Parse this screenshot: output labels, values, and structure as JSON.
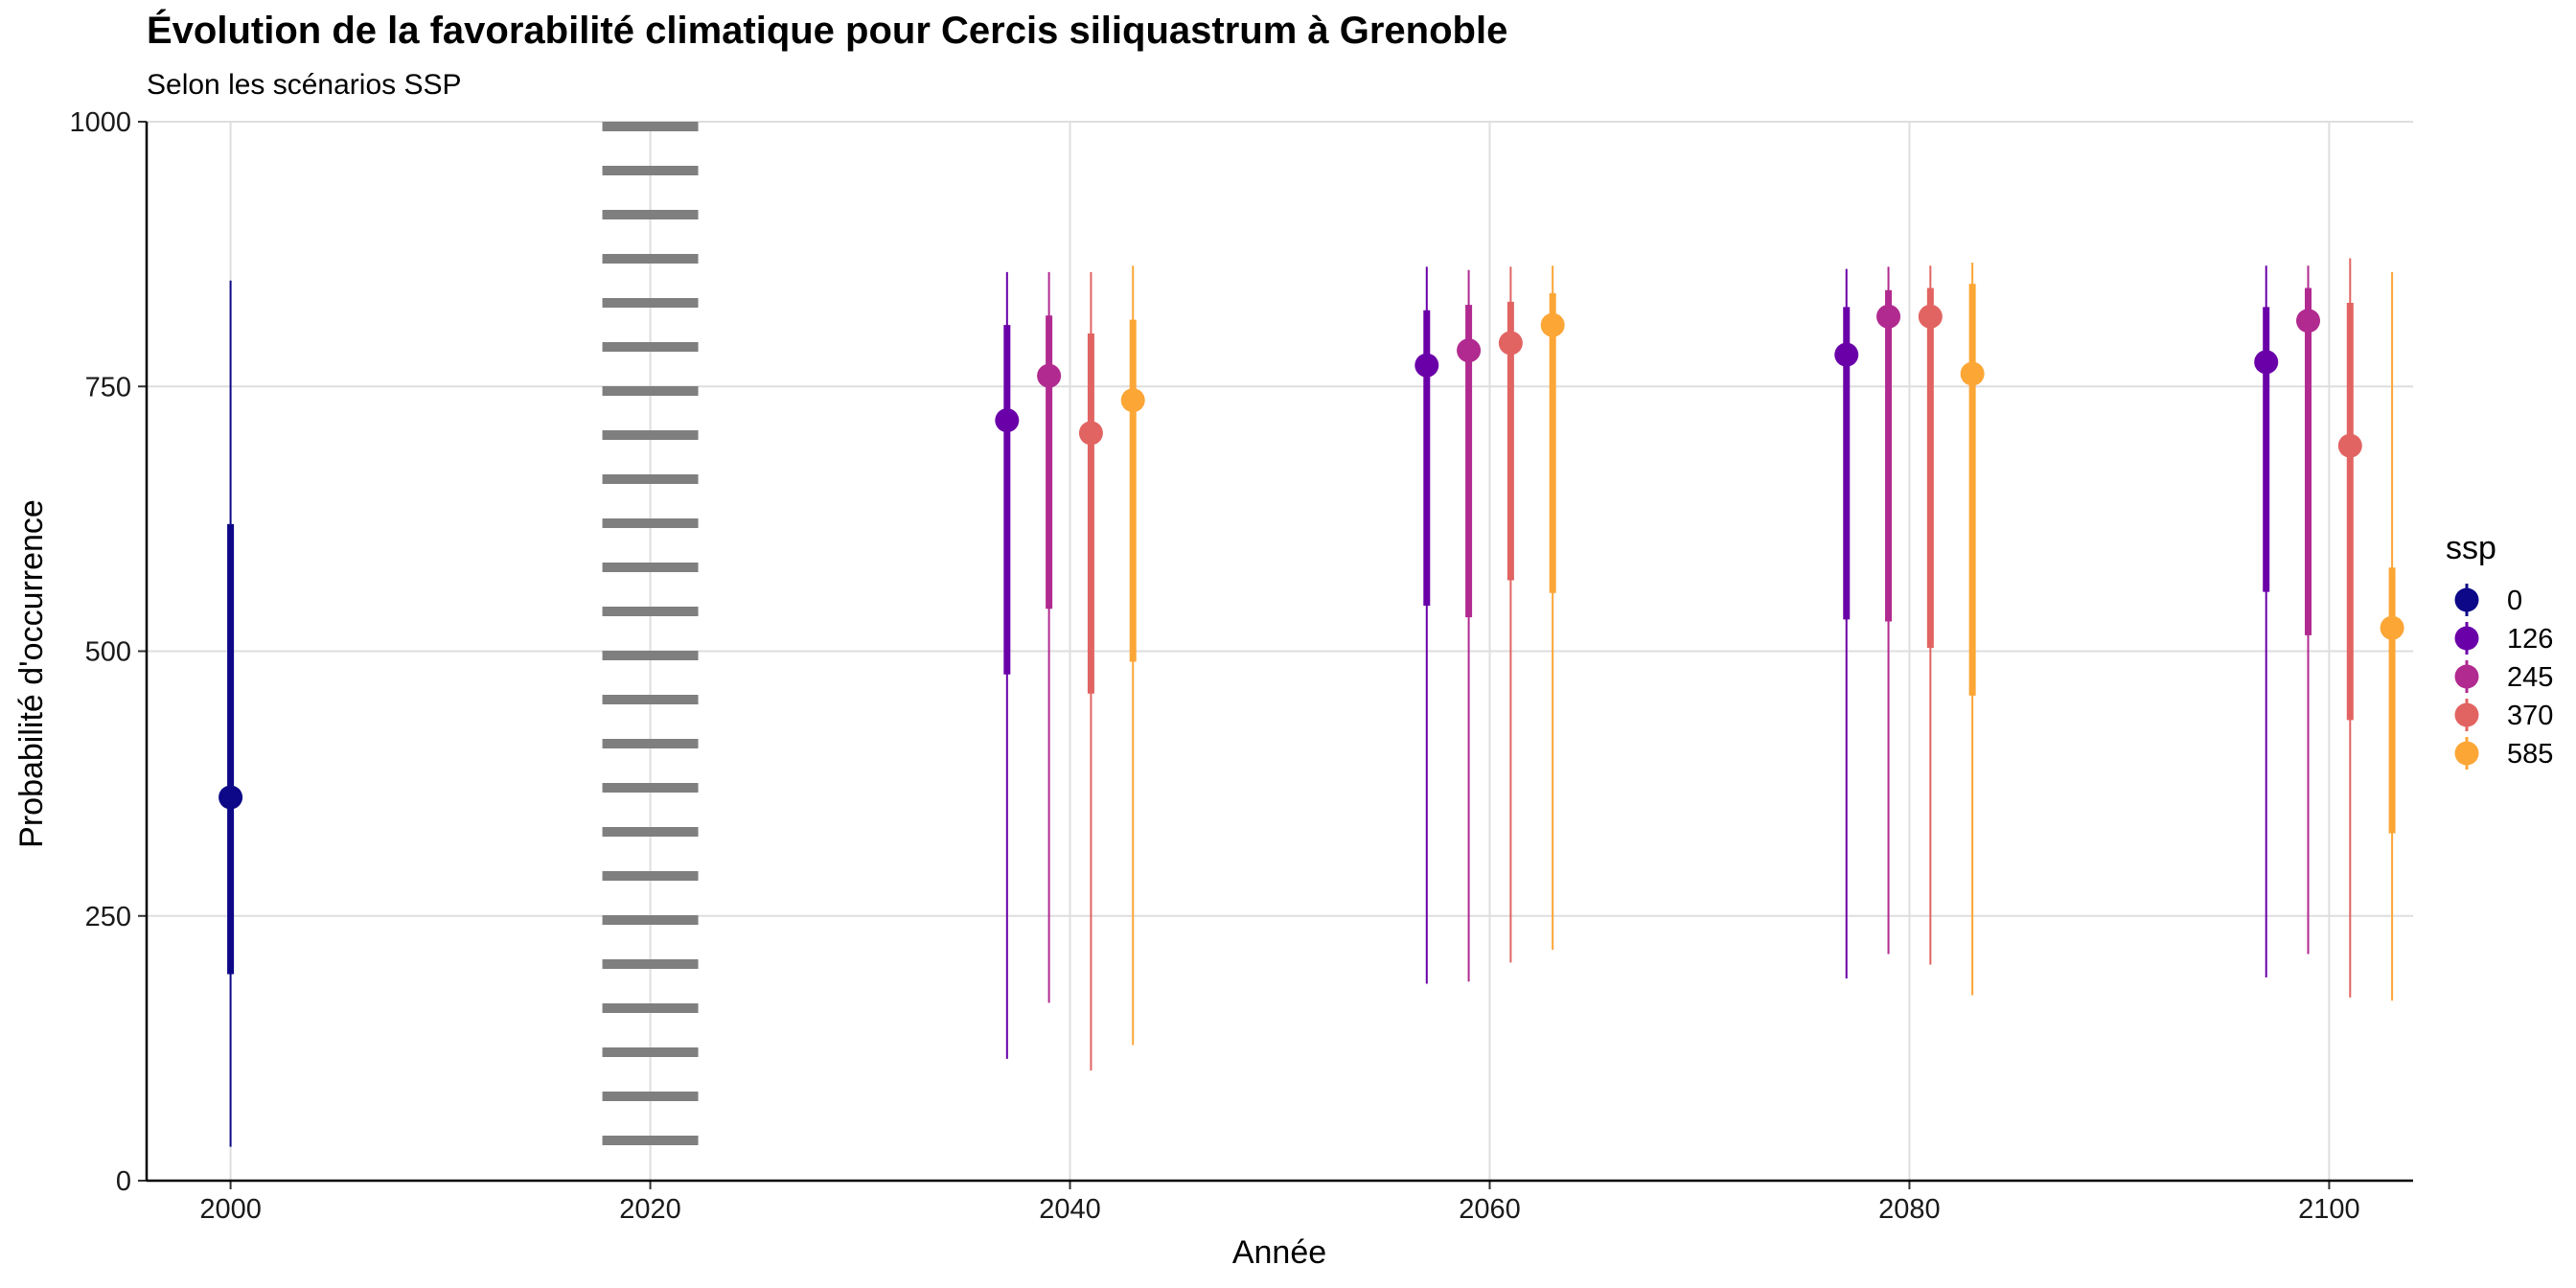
{
  "chart_data": {
    "type": "scatter",
    "title": "Évolution de la favorabilité climatique pour Cercis siliquastrum à Grenoble",
    "subtitle": "Selon les scénarios SSP",
    "xlabel": "Année",
    "ylabel": "Probabilité d'occurrence",
    "xlim": [
      1996,
      2104
    ],
    "ylim": [
      0,
      1000
    ],
    "x_ticks": [
      "2000",
      "2020",
      "2040",
      "2060",
      "2080",
      "2100"
    ],
    "y_ticks": [
      "0",
      "250",
      "500",
      "750",
      "1000"
    ],
    "grid": true,
    "legend": {
      "title": "ssp",
      "placement": "right"
    },
    "reference_line": {
      "x": 2020,
      "style": "dotted",
      "color": "#7f7f7f"
    },
    "series": [
      {
        "name": "0",
        "color": "#0d0887",
        "points": [
          {
            "x": 2000,
            "y": 362,
            "inner": [
              195,
              620
            ],
            "outer": [
              32,
              850
            ]
          }
        ]
      },
      {
        "name": "126",
        "color": "#6a00a8",
        "points": [
          {
            "x": 2037,
            "y": 718,
            "inner": [
              478,
              808
            ],
            "outer": [
              115,
              858
            ]
          },
          {
            "x": 2057,
            "y": 770,
            "inner": [
              543,
              822
            ],
            "outer": [
              186,
              863
            ]
          },
          {
            "x": 2077,
            "y": 780,
            "inner": [
              530,
              825
            ],
            "outer": [
              191,
              861
            ]
          },
          {
            "x": 2097,
            "y": 773,
            "inner": [
              556,
              825
            ],
            "outer": [
              192,
              864
            ]
          }
        ]
      },
      {
        "name": "245",
        "color": "#b12a90",
        "points": [
          {
            "x": 2039,
            "y": 760,
            "inner": [
              540,
              817
            ],
            "outer": [
              168,
              858
            ]
          },
          {
            "x": 2059,
            "y": 784,
            "inner": [
              532,
              827
            ],
            "outer": [
              188,
              860
            ]
          },
          {
            "x": 2079,
            "y": 816,
            "inner": [
              528,
              841
            ],
            "outer": [
              214,
              863
            ]
          },
          {
            "x": 2099,
            "y": 812,
            "inner": [
              515,
              843
            ],
            "outer": [
              214,
              864
            ]
          }
        ]
      },
      {
        "name": "370",
        "color": "#e16462",
        "points": [
          {
            "x": 2041,
            "y": 706,
            "inner": [
              460,
              800
            ],
            "outer": [
              104,
              858
            ]
          },
          {
            "x": 2061,
            "y": 791,
            "inner": [
              567,
              830
            ],
            "outer": [
              206,
              863
            ]
          },
          {
            "x": 2081,
            "y": 816,
            "inner": [
              503,
              843
            ],
            "outer": [
              204,
              864
            ]
          },
          {
            "x": 2101,
            "y": 694,
            "inner": [
              435,
              829
            ],
            "outer": [
              173,
              871
            ]
          }
        ]
      },
      {
        "name": "585",
        "color": "#fca636",
        "points": [
          {
            "x": 2043,
            "y": 737,
            "inner": [
              490,
              813
            ],
            "outer": [
              128,
              864
            ]
          },
          {
            "x": 2063,
            "y": 808,
            "inner": [
              555,
              838
            ],
            "outer": [
              218,
              864
            ]
          },
          {
            "x": 2083,
            "y": 762,
            "inner": [
              458,
              847
            ],
            "outer": [
              175,
              867
            ]
          },
          {
            "x": 2103,
            "y": 522,
            "inner": [
              328,
              579
            ],
            "outer": [
              170,
              858
            ]
          }
        ]
      }
    ]
  }
}
